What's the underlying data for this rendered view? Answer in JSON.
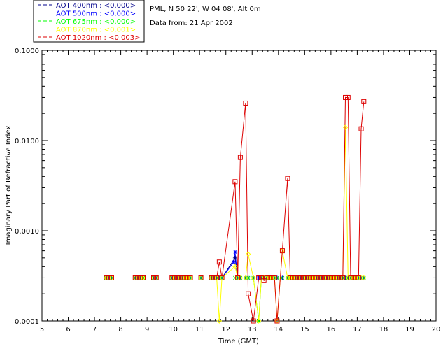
{
  "info": {
    "site": "PML, N 50 22', W 04 08', Alt 0m",
    "date": "Data from: 21 Apr 2002"
  },
  "chart_data": {
    "type": "line",
    "title": "",
    "xlabel": "Time (GMT)",
    "ylabel": "Imaginary Part of Refractive Index",
    "xlim": [
      5,
      20
    ],
    "ylim": [
      0.0001,
      0.1
    ],
    "y_scale": "log",
    "x_ticks": [
      "5",
      "6",
      "7",
      "8",
      "9",
      "10",
      "11",
      "12",
      "13",
      "14",
      "15",
      "16",
      "17",
      "18",
      "19",
      "20"
    ],
    "y_ticks": [
      "0.0001",
      "0.0010",
      "0.0100",
      "0.1000"
    ],
    "legend_position": "top-left",
    "series": [
      {
        "name": "AOT  400nm : <0.000>",
        "color": "#00008b",
        "marker": "asterisk",
        "x": [
          7.45,
          7.55,
          7.65,
          8.55,
          8.65,
          8.75,
          8.85,
          9.25,
          9.35,
          9.95,
          10.05,
          10.15,
          10.25,
          10.35,
          10.45,
          10.55,
          10.65,
          11.05,
          11.45,
          11.55,
          11.65,
          11.75,
          11.85,
          12.35,
          12.45,
          12.55,
          12.75,
          12.85,
          13.05,
          13.25,
          13.35,
          13.45,
          13.55,
          13.65,
          13.75,
          13.85,
          13.95,
          14.15,
          14.35,
          14.45,
          14.55,
          14.65,
          14.75,
          14.85,
          14.95,
          15.05,
          15.15,
          15.25,
          15.35,
          15.45,
          15.55,
          15.65,
          15.75,
          15.85,
          15.95,
          16.05,
          16.15,
          16.25,
          16.35,
          16.45,
          16.55,
          16.65,
          16.75,
          16.85,
          16.95,
          17.05,
          17.15,
          17.25
        ],
        "y": [
          0.0003,
          0.0003,
          0.0003,
          0.0003,
          0.0003,
          0.0003,
          0.0003,
          0.0003,
          0.0003,
          0.0003,
          0.0003,
          0.0003,
          0.0003,
          0.0003,
          0.0003,
          0.0003,
          0.0003,
          0.0003,
          0.0003,
          0.0003,
          0.0003,
          0.0003,
          0.0003,
          0.0005,
          0.0003,
          0.0003,
          0.0003,
          0.0003,
          0.0003,
          0.0003,
          0.0003,
          0.0003,
          0.0003,
          0.0003,
          0.0003,
          0.0003,
          0.0003,
          0.0003,
          0.0003,
          0.0003,
          0.0003,
          0.0003,
          0.0003,
          0.0003,
          0.0003,
          0.0003,
          0.0003,
          0.0003,
          0.0003,
          0.0003,
          0.0003,
          0.0003,
          0.0003,
          0.0003,
          0.0003,
          0.0003,
          0.0003,
          0.0003,
          0.0003,
          0.0003,
          0.0003,
          0.0003,
          0.0003,
          0.0003,
          0.0003,
          0.0003,
          0.0003,
          0.0003
        ]
      },
      {
        "name": "AOT  500nm : <0.000>",
        "color": "#0000ff",
        "marker": "asterisk",
        "x": [
          7.45,
          7.55,
          7.65,
          8.55,
          8.65,
          8.75,
          8.85,
          9.25,
          9.35,
          9.95,
          10.05,
          10.15,
          10.25,
          10.35,
          10.45,
          10.55,
          10.65,
          11.05,
          11.45,
          11.55,
          11.65,
          11.75,
          11.85,
          12.3,
          12.35,
          12.45,
          12.55,
          12.75,
          12.85,
          13.05,
          13.25,
          13.35,
          13.45,
          13.55,
          13.65,
          13.75,
          13.85,
          13.95,
          14.15,
          14.35,
          14.45,
          14.55,
          14.65,
          14.75,
          14.85,
          14.95,
          15.05,
          15.15,
          15.25,
          15.35,
          15.45,
          15.55,
          15.65,
          15.75,
          15.85,
          15.95,
          16.05,
          16.15,
          16.25,
          16.35,
          16.45,
          16.55,
          16.65,
          16.75,
          16.85,
          16.95,
          17.05,
          17.15,
          17.25
        ],
        "y": [
          0.0003,
          0.0003,
          0.0003,
          0.0003,
          0.0003,
          0.0003,
          0.0003,
          0.0003,
          0.0003,
          0.0003,
          0.0003,
          0.0003,
          0.0003,
          0.0003,
          0.0003,
          0.0003,
          0.0003,
          0.0003,
          0.0003,
          0.0003,
          0.0003,
          0.0003,
          0.0003,
          0.00045,
          0.00058,
          0.0003,
          0.0003,
          0.0003,
          0.0003,
          0.0003,
          0.0003,
          0.0003,
          0.0003,
          0.0003,
          0.0003,
          0.0003,
          0.0003,
          0.0003,
          0.0003,
          0.0003,
          0.0003,
          0.0003,
          0.0003,
          0.0003,
          0.0003,
          0.0003,
          0.0003,
          0.0003,
          0.0003,
          0.0003,
          0.0003,
          0.0003,
          0.0003,
          0.0003,
          0.0003,
          0.0003,
          0.0003,
          0.0003,
          0.0003,
          0.0003,
          0.0003,
          0.0003,
          0.0003,
          0.0003,
          0.0003,
          0.0003,
          0.0003,
          0.0003,
          0.0003
        ]
      },
      {
        "name": "AOT  675nm : <0.000>",
        "color": "#00ff00",
        "marker": "x",
        "x": [
          7.45,
          7.55,
          7.65,
          8.55,
          8.65,
          8.75,
          8.85,
          9.25,
          9.35,
          9.95,
          10.05,
          10.15,
          10.25,
          10.35,
          10.45,
          10.55,
          10.65,
          11.05,
          11.45,
          11.55,
          11.65,
          11.75,
          11.85,
          12.35,
          12.45,
          12.55,
          12.75,
          12.85,
          13.05,
          13.25,
          13.35,
          13.45,
          13.55,
          13.65,
          13.75,
          13.85,
          13.95,
          14.15,
          14.35,
          14.45,
          14.55,
          14.65,
          14.75,
          14.85,
          14.95,
          15.05,
          15.15,
          15.25,
          15.35,
          15.45,
          15.55,
          15.65,
          15.75,
          15.85,
          15.95,
          16.05,
          16.15,
          16.25,
          16.35,
          16.45,
          16.55,
          16.65,
          16.75,
          16.85,
          16.95,
          17.05,
          17.15,
          17.25
        ],
        "y": [
          0.0003,
          0.0003,
          0.0003,
          0.0003,
          0.0003,
          0.0003,
          0.0003,
          0.0003,
          0.0003,
          0.0003,
          0.0003,
          0.0003,
          0.0003,
          0.0003,
          0.0003,
          0.0003,
          0.0003,
          0.0003,
          0.0003,
          0.0003,
          0.0003,
          0.0003,
          0.0003,
          0.0003,
          0.0003,
          0.0003,
          0.0003,
          0.0003,
          0.0003,
          0.0001,
          0.0003,
          0.0003,
          0.0003,
          0.0003,
          0.0003,
          0.0003,
          0.0003,
          0.0003,
          0.0003,
          0.0003,
          0.0003,
          0.0003,
          0.0003,
          0.0003,
          0.0003,
          0.0003,
          0.0003,
          0.0003,
          0.0003,
          0.0003,
          0.0003,
          0.0003,
          0.0003,
          0.0003,
          0.0003,
          0.0003,
          0.0003,
          0.0003,
          0.0003,
          0.0003,
          0.0003,
          0.0003,
          0.0003,
          0.0003,
          0.0003,
          0.0003,
          0.0003,
          0.0003
        ]
      },
      {
        "name": "AOT  870nm : <0.001>",
        "color": "#ffff00",
        "marker": "diamond",
        "x": [
          7.45,
          7.55,
          7.65,
          8.55,
          8.65,
          8.75,
          8.85,
          9.25,
          9.35,
          9.95,
          10.05,
          10.15,
          10.25,
          10.35,
          10.45,
          10.55,
          10.65,
          11.05,
          11.45,
          11.55,
          11.65,
          11.75,
          11.85,
          12.35,
          12.45,
          12.55,
          12.75,
          12.85,
          13.05,
          13.25,
          13.35,
          13.45,
          13.55,
          13.65,
          13.75,
          13.85,
          13.95,
          14.15,
          14.35,
          14.45,
          14.55,
          14.65,
          14.75,
          14.85,
          14.95,
          15.05,
          15.15,
          15.25,
          15.35,
          15.45,
          15.55,
          15.65,
          15.75,
          15.85,
          15.95,
          16.05,
          16.15,
          16.25,
          16.35,
          16.45,
          16.55,
          16.65,
          16.75,
          16.85,
          16.95,
          17.05,
          17.15,
          17.25
        ],
        "y": [
          0.0003,
          0.0003,
          0.0003,
          0.0003,
          0.0003,
          0.0003,
          0.0003,
          0.0003,
          0.0003,
          0.0003,
          0.0003,
          0.0003,
          0.0003,
          0.0003,
          0.0003,
          0.0003,
          0.0003,
          0.0003,
          0.0003,
          0.0003,
          0.0003,
          0.0001,
          0.0003,
          0.0004,
          0.0003,
          0.0003,
          0.0003,
          0.00055,
          0.0003,
          0.0001,
          0.0003,
          0.0003,
          0.0003,
          0.0003,
          0.0003,
          0.0003,
          0.0001,
          0.0006,
          0.0003,
          0.0003,
          0.0003,
          0.0003,
          0.0003,
          0.0003,
          0.0003,
          0.0003,
          0.0003,
          0.0003,
          0.0003,
          0.0003,
          0.0003,
          0.0003,
          0.0003,
          0.0003,
          0.0003,
          0.0003,
          0.0003,
          0.0003,
          0.0003,
          0.0003,
          0.014,
          0.0003,
          0.0003,
          0.0003,
          0.0003,
          0.0003,
          0.0003,
          0.0003
        ]
      },
      {
        "name": "AOT 1020nm : <0.003>",
        "color": "#dd0000",
        "marker": "square",
        "x": [
          7.45,
          7.55,
          7.65,
          8.55,
          8.65,
          8.75,
          8.85,
          9.25,
          9.35,
          9.95,
          10.05,
          10.15,
          10.25,
          10.35,
          10.45,
          10.55,
          10.65,
          11.05,
          11.45,
          11.55,
          11.65,
          11.75,
          11.85,
          12.35,
          12.45,
          12.55,
          12.75,
          12.85,
          13.05,
          13.25,
          13.35,
          13.45,
          13.55,
          13.65,
          13.75,
          13.85,
          13.95,
          14.15,
          14.35,
          14.45,
          14.55,
          14.65,
          14.75,
          14.85,
          14.95,
          15.05,
          15.15,
          15.25,
          15.35,
          15.45,
          15.55,
          15.65,
          15.75,
          15.85,
          15.95,
          16.05,
          16.15,
          16.25,
          16.35,
          16.45,
          16.55,
          16.65,
          16.75,
          16.85,
          16.95,
          17.05,
          17.15,
          17.25
        ],
        "y": [
          0.0003,
          0.0003,
          0.0003,
          0.0003,
          0.0003,
          0.0003,
          0.0003,
          0.0003,
          0.0003,
          0.0003,
          0.0003,
          0.0003,
          0.0003,
          0.0003,
          0.0003,
          0.0003,
          0.0003,
          0.0003,
          0.0003,
          0.0003,
          0.0003,
          0.00045,
          0.0003,
          0.0035,
          0.0003,
          0.0065,
          0.026,
          0.0002,
          0.0001,
          0.0003,
          0.0003,
          0.00028,
          0.0003,
          0.0003,
          0.0003,
          0.0003,
          0.0001,
          0.0006,
          0.0038,
          0.0003,
          0.0003,
          0.0003,
          0.0003,
          0.0003,
          0.0003,
          0.0003,
          0.0003,
          0.0003,
          0.0003,
          0.0003,
          0.0003,
          0.0003,
          0.0003,
          0.0003,
          0.0003,
          0.0003,
          0.0003,
          0.0003,
          0.0003,
          0.0003,
          0.03,
          0.03,
          0.0003,
          0.0003,
          0.0003,
          0.0003,
          0.0135,
          0.027
        ]
      }
    ]
  }
}
